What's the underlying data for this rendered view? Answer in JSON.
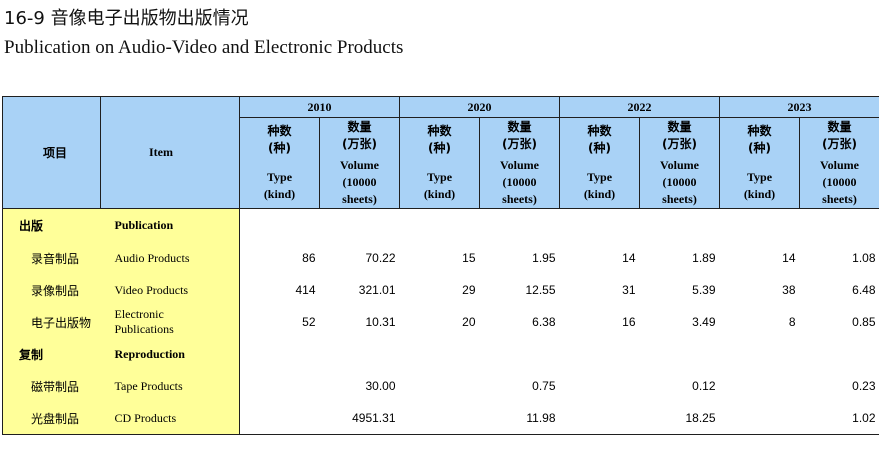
{
  "title": {
    "zh": "16-9 音像电子出版物出版情况",
    "en": "Publication on Audio-Video and Electronic Products"
  },
  "header": {
    "item_zh": "项目",
    "item_en": "Item",
    "years": [
      "2010",
      "2020",
      "2022",
      "2023"
    ],
    "type_zh_1": "种数",
    "type_zh_2": "(种)",
    "type_en_1": "Type",
    "type_en_2": "(kind)",
    "volume_zh_1": "数量",
    "volume_zh_2": "(万张)",
    "volume_en_1": "Volume",
    "volume_en_2": "(10000",
    "volume_en_3": "sheets)"
  },
  "rows": [
    {
      "zh": "出版",
      "en": "Publication",
      "section": true,
      "values": [
        "",
        "",
        "",
        "",
        "",
        "",
        "",
        ""
      ]
    },
    {
      "zh": "录音制品",
      "en": "Audio Products",
      "section": false,
      "values": [
        "86",
        "70.22",
        "15",
        "1.95",
        "14",
        "1.89",
        "14",
        "1.08"
      ]
    },
    {
      "zh": "录像制品",
      "en": "Video Products",
      "section": false,
      "values": [
        "414",
        "321.01",
        "29",
        "12.55",
        "31",
        "5.39",
        "38",
        "6.48"
      ]
    },
    {
      "zh": "电子出版物",
      "en": "Electronic Publications",
      "en_line1": "Electronic",
      "en_line2": "Publications",
      "section": false,
      "values": [
        "52",
        "10.31",
        "20",
        "6.38",
        "16",
        "3.49",
        "8",
        "0.85"
      ]
    },
    {
      "zh": "复制",
      "en": "Reproduction",
      "section": true,
      "values": [
        "",
        "",
        "",
        "",
        "",
        "",
        "",
        ""
      ]
    },
    {
      "zh": "磁带制品",
      "en": "Tape Products",
      "section": false,
      "values": [
        "",
        "30.00",
        "",
        "0.75",
        "",
        "0.12",
        "",
        "0.23"
      ]
    },
    {
      "zh": "光盘制品",
      "en": "CD Products",
      "section": false,
      "values": [
        "",
        "4951.31",
        "",
        "11.98",
        "",
        "18.25",
        "",
        "1.02"
      ]
    }
  ]
}
